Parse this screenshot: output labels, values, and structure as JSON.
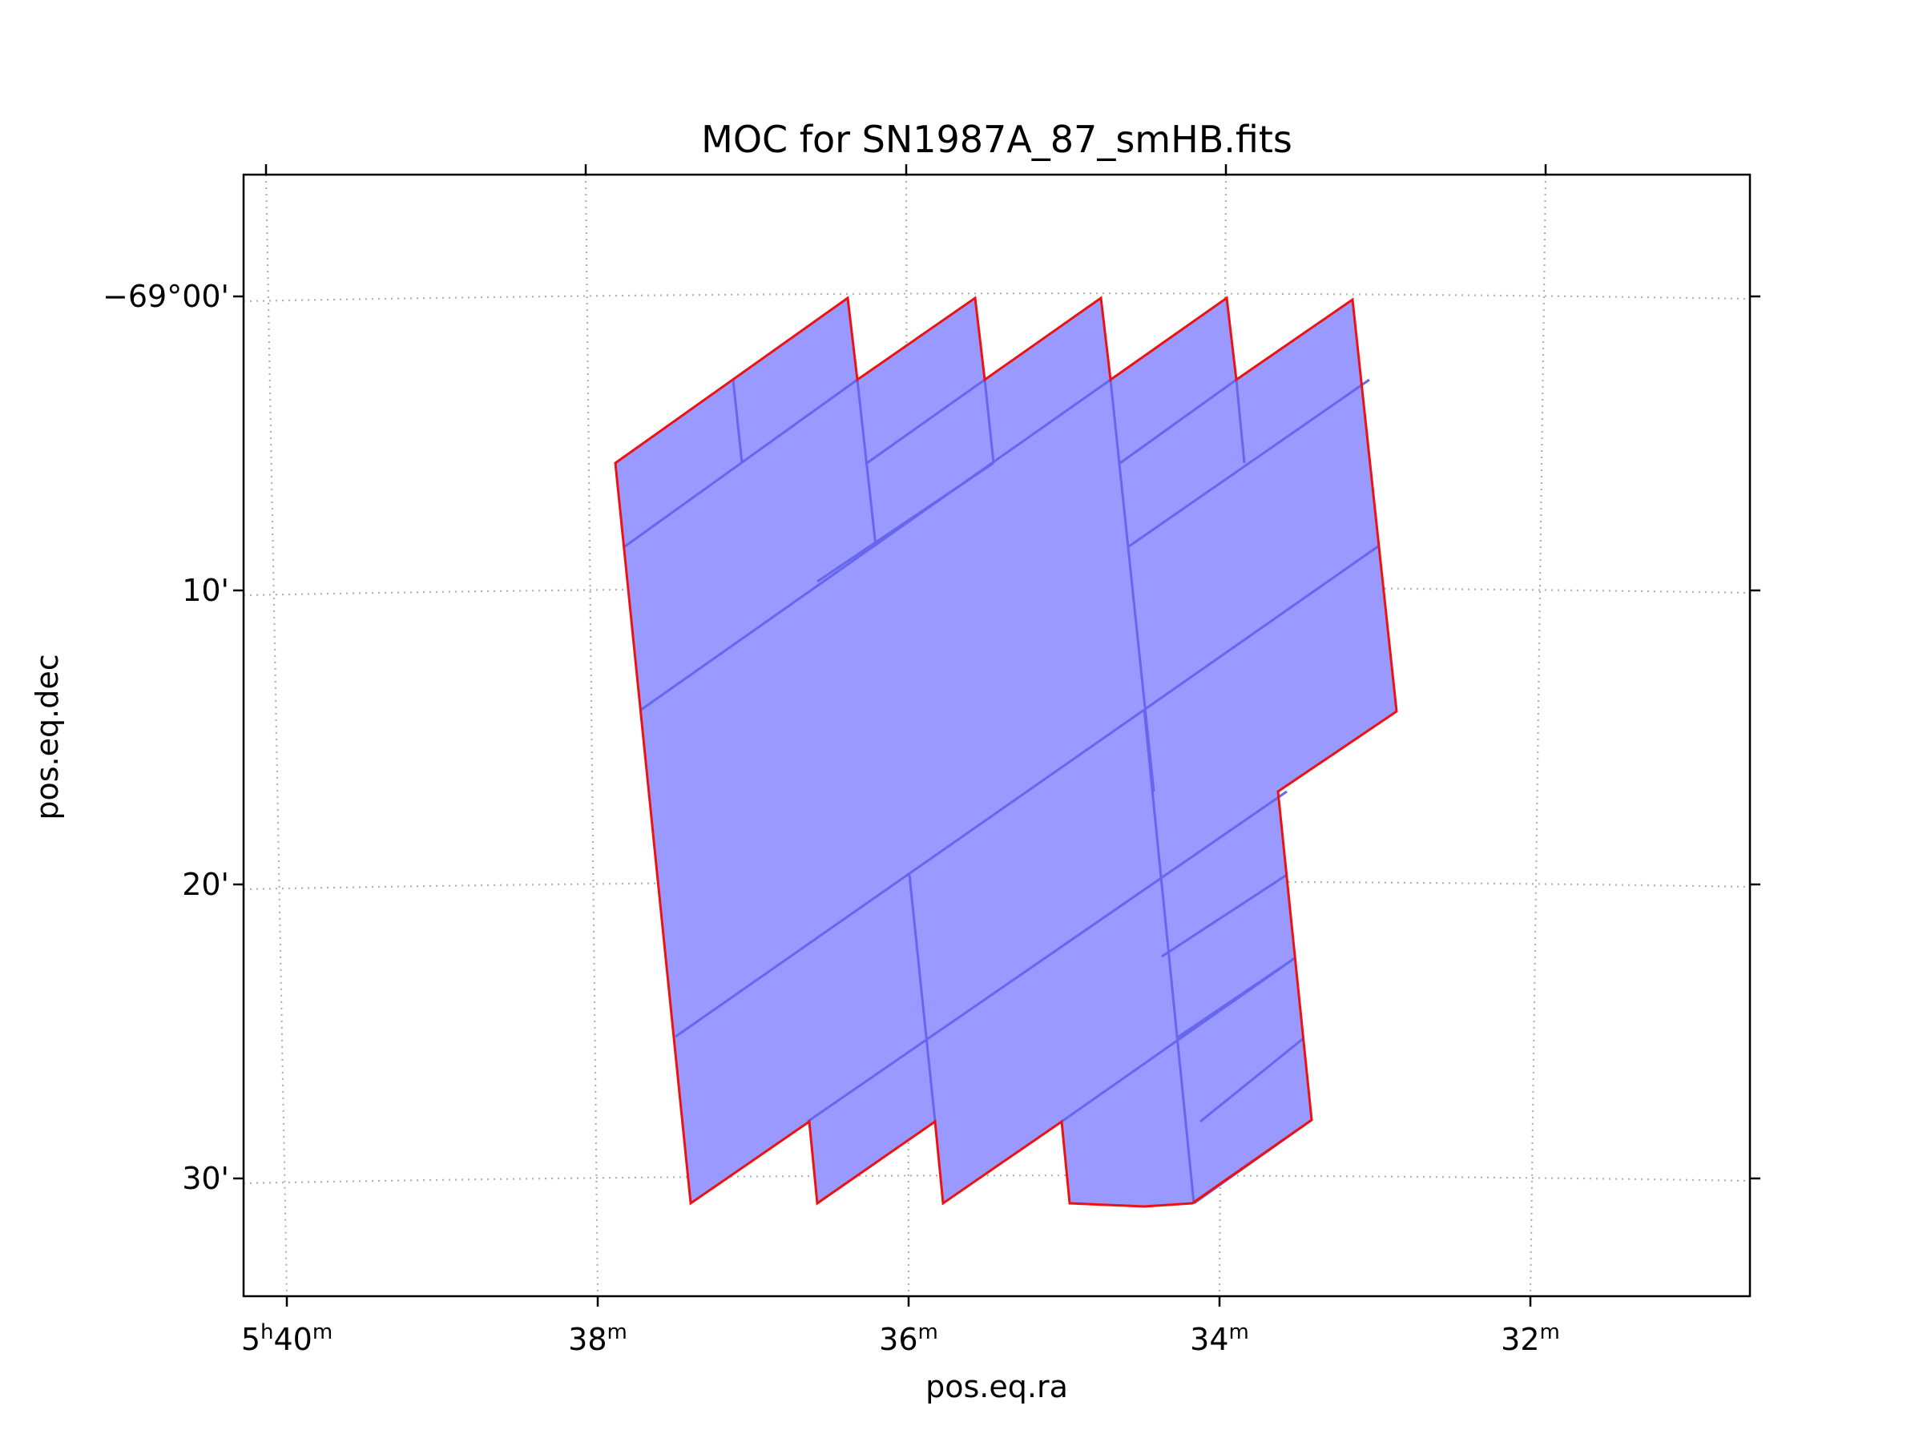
{
  "chart_data": {
    "type": "moc-sky-map",
    "title": "MOC for SN1987A_87_smHB.fits",
    "xlabel": "pos.eq.ra",
    "ylabel": "pos.eq.dec",
    "x_ticks": [
      {
        "label_main": "5",
        "label_sup1": "h",
        "label_mid": "40",
        "label_sup2": "m",
        "ra_min": 340
      },
      {
        "label_main": "38",
        "label_sup1": "m",
        "ra_min": 338
      },
      {
        "label_main": "36",
        "label_sup1": "m",
        "ra_min": 336
      },
      {
        "label_main": "34",
        "label_sup1": "m",
        "ra_min": 334
      },
      {
        "label_main": "32",
        "label_sup1": "m",
        "ra_min": 332
      }
    ],
    "y_ticks": [
      {
        "label": "−69°00'",
        "dec_arcmin": 0
      },
      {
        "label": "10'",
        "dec_arcmin": 10
      },
      {
        "label": "20'",
        "dec_arcmin": 20
      },
      {
        "label": "30'",
        "dec_arcmin": 30
      }
    ],
    "grid": true,
    "grid_style": "dotted",
    "colors": {
      "fill": "#9999ff",
      "cell_edge": "#6666ee",
      "boundary": "#ee1111",
      "grid": "#b0b0b0",
      "axes": "#000000"
    }
  }
}
